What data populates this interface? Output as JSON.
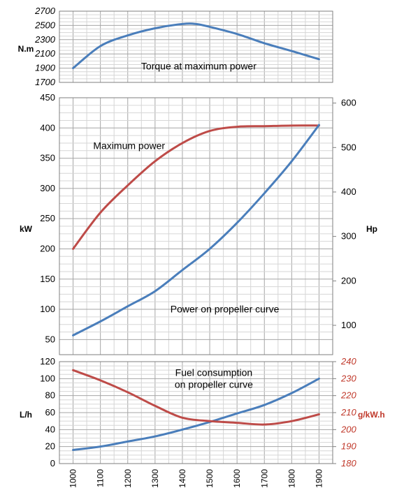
{
  "chart_data": [
    {
      "type": "line",
      "ylabel": "N.m",
      "ylim": [
        1700,
        2700
      ],
      "yticks": [
        1700,
        1900,
        2100,
        2300,
        2500,
        2700
      ],
      "yticklabels": [
        "1700",
        "1900",
        "2100",
        "2300",
        "2500",
        "2700"
      ],
      "xlim": [
        950,
        1950
      ],
      "grid": true,
      "annotations": [
        {
          "text": "Torque at maximum power",
          "x": 1460,
          "y": 1880
        }
      ],
      "series": [
        {
          "color": "#4a7ebb",
          "x": [
            1000,
            1100,
            1200,
            1300,
            1400,
            1450,
            1500,
            1600,
            1700,
            1800,
            1900
          ],
          "y": [
            1900,
            2210,
            2360,
            2460,
            2520,
            2520,
            2480,
            2380,
            2250,
            2140,
            2025
          ]
        }
      ]
    },
    {
      "type": "line",
      "ylabel": "kW",
      "y2label": "Hp",
      "ylim": [
        25,
        450
      ],
      "yticks": [
        50,
        100,
        150,
        200,
        250,
        300,
        350,
        400,
        450
      ],
      "yticklabels": [
        "50",
        "100",
        "150",
        "200",
        "250",
        "300",
        "350",
        "400",
        "450"
      ],
      "y2lim": [
        34,
        612
      ],
      "y2ticks": [
        100,
        200,
        300,
        400,
        500,
        600
      ],
      "y2ticklabels": [
        "100",
        "200",
        "300",
        "400",
        "500",
        "600"
      ],
      "xlim": [
        950,
        1950
      ],
      "grid": true,
      "annotations": [
        {
          "text": "Maximum power",
          "x": 1205,
          "y": 365
        },
        {
          "text": "Power on propeller curve",
          "x": 1555,
          "y": 95
        }
      ],
      "series": [
        {
          "color": "#be4b48",
          "x": [
            1000,
            1100,
            1200,
            1300,
            1400,
            1500,
            1600,
            1700,
            1800,
            1900
          ],
          "y": [
            200,
            260,
            305,
            345,
            375,
            395,
            402,
            403,
            404,
            404
          ]
        },
        {
          "color": "#4a7ebb",
          "x": [
            1000,
            1100,
            1200,
            1300,
            1400,
            1500,
            1600,
            1700,
            1800,
            1900
          ],
          "y": [
            57,
            80,
            105,
            130,
            165,
            200,
            243,
            292,
            345,
            405
          ]
        }
      ]
    },
    {
      "type": "line",
      "ylabel": "L/h",
      "y2label": "g/kW.h",
      "ylim": [
        0,
        120
      ],
      "yticks": [
        0,
        20,
        40,
        60,
        80,
        100,
        120
      ],
      "yticklabels": [
        "0",
        "20",
        "40",
        "60",
        "80",
        "100",
        "120"
      ],
      "y2lim": [
        180,
        240
      ],
      "y2ticks": [
        180,
        190,
        200,
        210,
        220,
        230,
        240
      ],
      "y2ticklabels": [
        "180",
        "190",
        "200",
        "210",
        "220",
        "230",
        "240"
      ],
      "y2color": "#c0392b",
      "xlim": [
        950,
        1950
      ],
      "categories": [
        "1000",
        "1100",
        "1200",
        "1300",
        "1400",
        "1500",
        "1600",
        "1700",
        "1800",
        "1900"
      ],
      "grid": true,
      "annotations": [
        {
          "text": "Fuel consumption\non propeller curve",
          "x": 1515,
          "y": 103
        }
      ],
      "series": [
        {
          "color": "#4a7ebb",
          "axis": "left",
          "x": [
            1000,
            1100,
            1200,
            1300,
            1400,
            1500,
            1600,
            1700,
            1800,
            1900
          ],
          "y": [
            16,
            20,
            26,
            32,
            40,
            49,
            59,
            69,
            83,
            100
          ]
        },
        {
          "color": "#be4b48",
          "axis": "right",
          "x": [
            1000,
            1100,
            1200,
            1300,
            1400,
            1500,
            1600,
            1700,
            1800,
            1900
          ],
          "y": [
            235,
            229,
            222,
            214,
            207,
            205,
            204,
            203,
            205,
            209
          ]
        }
      ]
    }
  ]
}
